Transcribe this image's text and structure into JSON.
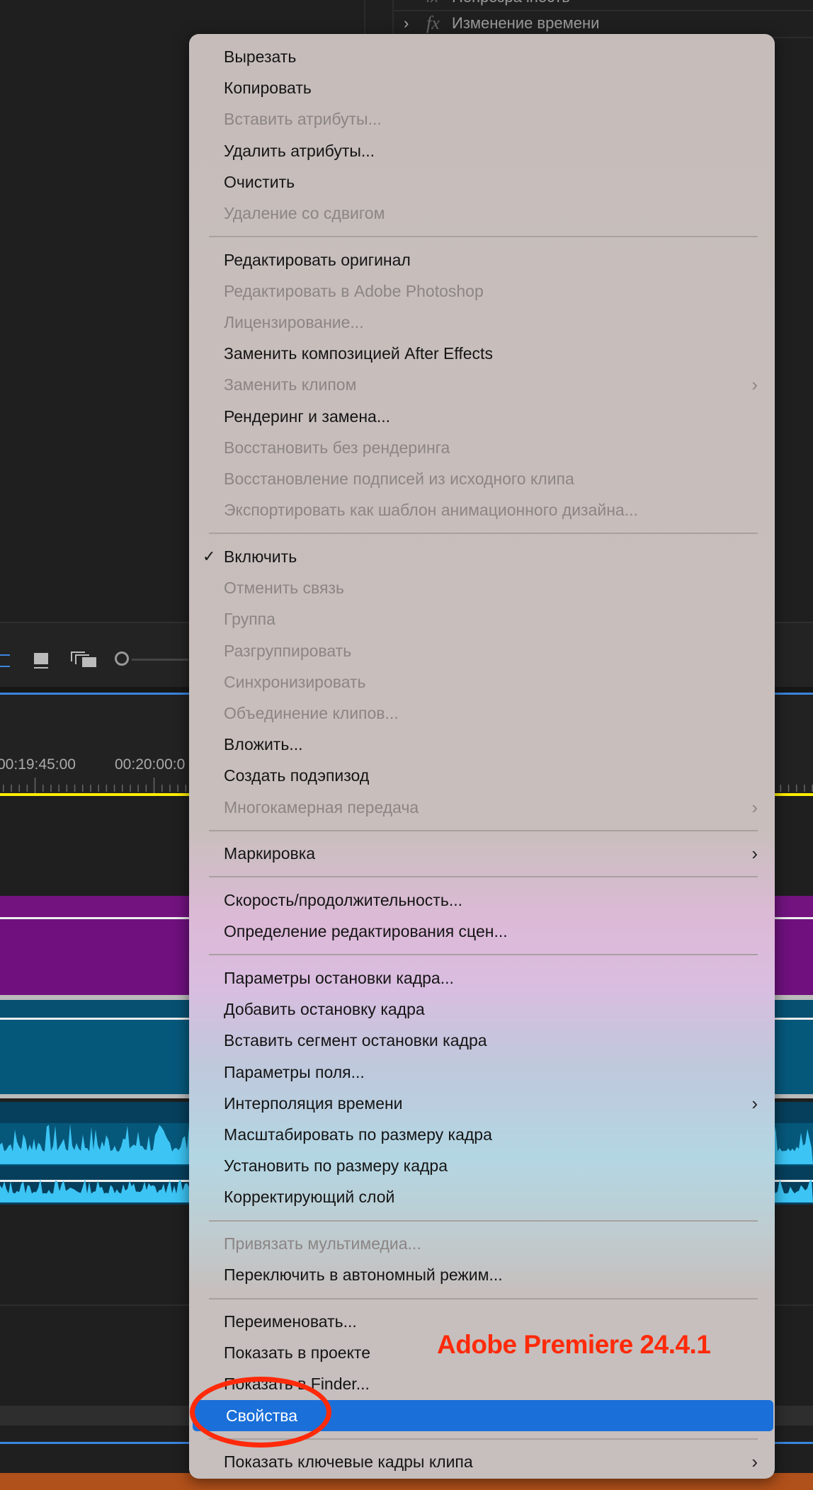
{
  "effects_panel": {
    "rows": [
      {
        "label": "Непрозрачность"
      },
      {
        "label": "Изменение времени"
      }
    ]
  },
  "timeline": {
    "timecodes": [
      "00:19:45:00",
      "00:20:00:0"
    ],
    "colors": {
      "video_track_1": "#6f107e",
      "video_track_2": "#06587b",
      "audio_waveform": "#3cc4f4",
      "playhead_bar": "#ffee00",
      "accent": "#3a86e0"
    }
  },
  "context_menu": {
    "highlight_color": "#1a6fd9",
    "items": [
      {
        "label": "Вырезать"
      },
      {
        "label": "Копировать"
      },
      {
        "label": "Вставить атрибуты...",
        "disabled": true
      },
      {
        "label": "Удалить атрибуты..."
      },
      {
        "label": "Очистить"
      },
      {
        "label": "Удаление со сдвигом",
        "disabled": true
      },
      {
        "separator": true
      },
      {
        "label": "Редактировать оригинал"
      },
      {
        "label": "Редактировать в Adobe Photoshop",
        "disabled": true
      },
      {
        "label": "Лицензирование...",
        "disabled": true
      },
      {
        "label": "Заменить композицией After Effects"
      },
      {
        "label": "Заменить клипом",
        "disabled": true,
        "submenu": true
      },
      {
        "label": "Рендеринг и замена..."
      },
      {
        "label": "Восстановить без рендеринга",
        "disabled": true
      },
      {
        "label": "Восстановление подписей из исходного клипа",
        "disabled": true
      },
      {
        "label": "Экспортировать как шаблон анимационного дизайна...",
        "disabled": true
      },
      {
        "separator": true
      },
      {
        "label": "Включить",
        "checked": true
      },
      {
        "label": "Отменить связь",
        "disabled": true
      },
      {
        "label": "Группа",
        "disabled": true
      },
      {
        "label": "Разгруппировать",
        "disabled": true
      },
      {
        "label": "Синхронизировать",
        "disabled": true
      },
      {
        "label": "Объединение клипов...",
        "disabled": true
      },
      {
        "label": "Вложить..."
      },
      {
        "label": "Создать подэпизод"
      },
      {
        "label": "Многокамерная передача",
        "disabled": true,
        "submenu": true
      },
      {
        "separator": true
      },
      {
        "label": "Маркировка",
        "submenu": true
      },
      {
        "separator": true
      },
      {
        "label": "Скорость/продолжительность..."
      },
      {
        "label": "Определение редактирования сцен..."
      },
      {
        "separator": true
      },
      {
        "label": "Параметры остановки кадра..."
      },
      {
        "label": "Добавить остановку кадра"
      },
      {
        "label": "Вставить сегмент остановки кадра"
      },
      {
        "label": "Параметры поля..."
      },
      {
        "label": "Интерполяция времени",
        "submenu": true
      },
      {
        "label": "Масштабировать по размеру кадра"
      },
      {
        "label": "Установить по размеру кадра"
      },
      {
        "label": "Корректирующий слой"
      },
      {
        "separator": true
      },
      {
        "label": "Привязать мультимедиа...",
        "disabled": true
      },
      {
        "label": "Переключить в автономный режим..."
      },
      {
        "separator": true
      },
      {
        "label": "Переименовать..."
      },
      {
        "label": "Показать в проекте"
      },
      {
        "label": "Показать в Finder..."
      },
      {
        "label": "Свойства",
        "selected": true
      },
      {
        "separator": true
      },
      {
        "label": "Показать ключевые кадры клипа",
        "submenu": true
      }
    ]
  },
  "annotation": {
    "text": "Adobe Premiere 24.4.1",
    "color": "#ff2a0a"
  }
}
